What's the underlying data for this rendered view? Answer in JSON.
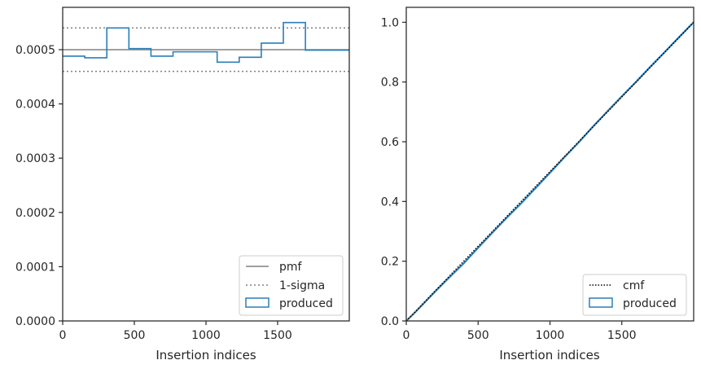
{
  "chart_data": [
    {
      "type": "step",
      "xlabel": "Insertion indices",
      "ylabel": "",
      "xlim": [
        0,
        2000
      ],
      "ylim": [
        0,
        0.000578
      ],
      "xticks": [
        0,
        500,
        1000,
        1500
      ],
      "xtick_labels": [
        "0",
        "500",
        "1000",
        "1500"
      ],
      "yticks": [
        0,
        0.0001,
        0.0002,
        0.0003,
        0.0004,
        0.0005
      ],
      "ytick_labels": [
        "0.0000",
        "0.0001",
        "0.0002",
        "0.0003",
        "0.0004",
        "0.0005"
      ],
      "pmf": 0.0005,
      "sigma_upper": 0.00054,
      "sigma_lower": 0.00046,
      "produced": {
        "edges": [
          0,
          154,
          308,
          462,
          616,
          770,
          924,
          1078,
          1232,
          1386,
          1540,
          1694,
          2000
        ],
        "values": [
          0.000488,
          0.000485,
          0.00054,
          0.000502,
          0.000488,
          0.000496,
          0.000496,
          0.000477,
          0.000486,
          0.000512,
          0.00055,
          0.000499
        ]
      },
      "legend": {
        "position": "lower right",
        "entries": [
          {
            "label": "pmf",
            "style": "solid-gray"
          },
          {
            "label": "1-sigma",
            "style": "dotted-gray"
          },
          {
            "label": "produced",
            "style": "blue-box"
          }
        ]
      },
      "colors": {
        "produced": "#2a7fb8",
        "pmf": "#808080",
        "sigma": "#808080",
        "axes": "#262626"
      }
    },
    {
      "type": "line",
      "xlabel": "Insertion indices",
      "ylabel": "",
      "xlim": [
        0,
        2000
      ],
      "ylim": [
        0,
        1.05
      ],
      "xticks": [
        0,
        500,
        1000,
        1500
      ],
      "xtick_labels": [
        "0",
        "500",
        "1000",
        "1500"
      ],
      "yticks": [
        0,
        0.2,
        0.4,
        0.6,
        0.8,
        1.0
      ],
      "ytick_labels": [
        "0.0",
        "0.2",
        "0.4",
        "0.6",
        "0.8",
        "1.0"
      ],
      "cmf": {
        "x": [
          0,
          2000
        ],
        "y": [
          0,
          1.0
        ]
      },
      "produced": {
        "x": [
          0,
          60,
          120,
          200,
          300,
          400,
          500,
          600,
          700,
          800,
          900,
          1000,
          1100,
          1200,
          1300,
          1400,
          1500,
          1600,
          1700,
          1800,
          1900,
          2000
        ],
        "y": [
          0,
          0.028,
          0.058,
          0.098,
          0.146,
          0.193,
          0.245,
          0.296,
          0.346,
          0.394,
          0.445,
          0.496,
          0.548,
          0.598,
          0.651,
          0.702,
          0.752,
          0.801,
          0.852,
          0.901,
          0.951,
          1.0
        ]
      },
      "legend": {
        "position": "lower right",
        "entries": [
          {
            "label": "cmf",
            "style": "dotted-black"
          },
          {
            "label": "produced",
            "style": "blue-box"
          }
        ]
      },
      "colors": {
        "produced": "#2a7fb8",
        "cmf": "#000000",
        "axes": "#262626"
      }
    }
  ]
}
